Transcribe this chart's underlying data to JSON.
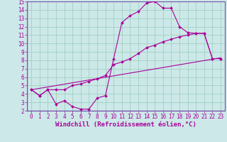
{
  "xlabel": "Windchill (Refroidissement éolien,°C)",
  "background_color": "#cce8e8",
  "grid_color": "#99ccbb",
  "line_color": "#aa0099",
  "spine_color": "#7755aa",
  "xlim": [
    -0.5,
    23.5
  ],
  "ylim": [
    2,
    15
  ],
  "xticks": [
    0,
    1,
    2,
    3,
    4,
    5,
    6,
    7,
    8,
    9,
    10,
    11,
    12,
    13,
    14,
    15,
    16,
    17,
    18,
    19,
    20,
    21,
    22,
    23
  ],
  "yticks": [
    2,
    3,
    4,
    5,
    6,
    7,
    8,
    9,
    10,
    11,
    12,
    13,
    14,
    15
  ],
  "curve1_x": [
    0,
    1,
    2,
    3,
    4,
    5,
    6,
    7,
    8,
    9,
    10,
    11,
    12,
    13,
    14,
    15,
    16,
    17,
    18,
    19,
    20,
    21,
    22,
    23
  ],
  "curve1_y": [
    4.5,
    3.8,
    4.5,
    2.8,
    3.2,
    2.5,
    2.2,
    2.2,
    3.5,
    3.8,
    8.2,
    12.5,
    13.3,
    13.8,
    14.8,
    15.0,
    14.2,
    14.2,
    12.0,
    11.3,
    11.2,
    11.2,
    8.2,
    8.2
  ],
  "curve2_x": [
    0,
    1,
    2,
    3,
    4,
    5,
    6,
    7,
    8,
    9,
    10,
    11,
    12,
    13,
    14,
    15,
    16,
    17,
    18,
    19,
    20,
    21,
    22,
    23
  ],
  "curve2_y": [
    4.5,
    3.8,
    4.5,
    4.5,
    4.5,
    5.0,
    5.2,
    5.5,
    5.8,
    6.2,
    7.5,
    7.8,
    8.2,
    8.8,
    9.5,
    9.8,
    10.2,
    10.5,
    10.8,
    11.0,
    11.2,
    11.2,
    8.2,
    8.2
  ],
  "curve3_x": [
    0,
    23
  ],
  "curve3_y": [
    4.5,
    8.3
  ],
  "font_size_ticks": 5.5,
  "font_size_xlabel": 6.5,
  "marker_size": 2.0,
  "linewidth": 0.8
}
